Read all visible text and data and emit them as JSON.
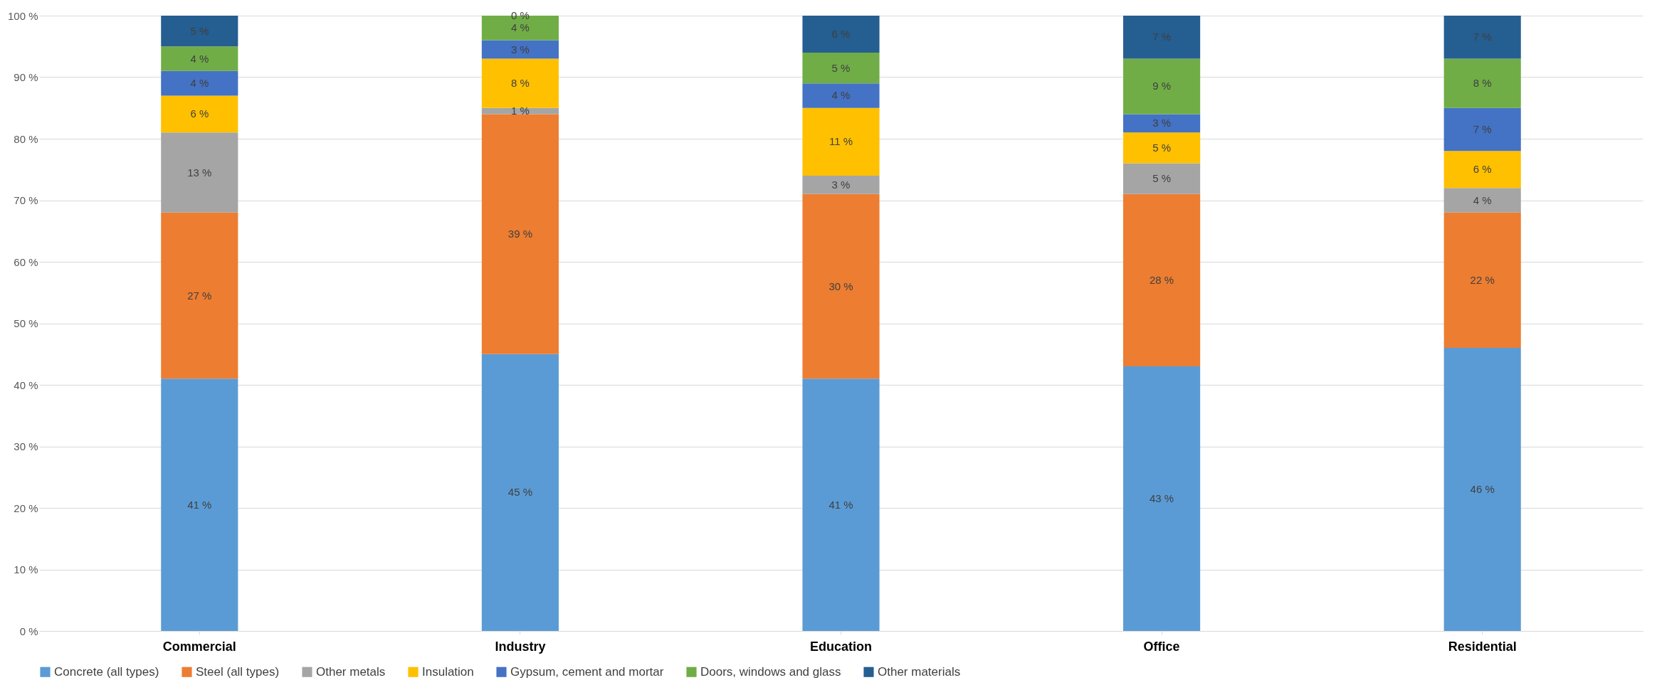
{
  "chart_data": {
    "type": "bar",
    "stacked": true,
    "categories": [
      "Commercial",
      "Industry",
      "Education",
      "Office",
      "Residential"
    ],
    "series": [
      {
        "name": "Concrete (all types)",
        "color": "#5b9bd5",
        "values": [
          41,
          45,
          41,
          43,
          46
        ],
        "value_labels": [
          "41 %",
          "45 %",
          "41 %",
          "43 %",
          "46 %"
        ]
      },
      {
        "name": "Steel (all types)",
        "color": "#ed7d31",
        "values": [
          27,
          39,
          30,
          28,
          22
        ],
        "value_labels": [
          "27 %",
          "39 %",
          "30 %",
          "28 %",
          "22 %"
        ]
      },
      {
        "name": "Other metals",
        "color": "#a5a5a5",
        "values": [
          13,
          1,
          3,
          5,
          4
        ],
        "value_labels": [
          "13 %",
          "1 %",
          "3 %",
          "5 %",
          "4 %"
        ]
      },
      {
        "name": "Insulation",
        "color": "#ffc000",
        "values": [
          6,
          8,
          11,
          5,
          6
        ],
        "value_labels": [
          "6 %",
          "8 %",
          "11 %",
          "5 %",
          "6 %"
        ]
      },
      {
        "name": "Gypsum, cement and mortar",
        "color": "#4472c4",
        "values": [
          4,
          3,
          4,
          3,
          7
        ],
        "value_labels": [
          "4 %",
          "3 %",
          "4 %",
          "3 %",
          "7 %"
        ]
      },
      {
        "name": "Doors, windows and glass",
        "color": "#70ad47",
        "values": [
          4,
          4,
          5,
          9,
          8
        ],
        "value_labels": [
          "4 %",
          "4 %",
          "5 %",
          "9 %",
          "8 %"
        ]
      },
      {
        "name": "Other materials",
        "color": "#255e91",
        "values": [
          5,
          0,
          6,
          7,
          7
        ],
        "value_labels": [
          "5 %",
          "0 %",
          "6 %",
          "7 %",
          "7 %"
        ]
      }
    ],
    "ylim": [
      0,
      100
    ],
    "yticks": [
      {
        "value": 0,
        "label": "0 %"
      },
      {
        "value": 10,
        "label": "10 %"
      },
      {
        "value": 20,
        "label": "20 %"
      },
      {
        "value": 30,
        "label": "30 %"
      },
      {
        "value": 40,
        "label": "40 %"
      },
      {
        "value": 50,
        "label": "50 %"
      },
      {
        "value": 60,
        "label": "60 %"
      },
      {
        "value": 70,
        "label": "70 %"
      },
      {
        "value": 80,
        "label": "80 %"
      },
      {
        "value": 90,
        "label": "90 %"
      },
      {
        "value": 100,
        "label": "100 %"
      }
    ],
    "grid": "y",
    "legend": "bottom"
  }
}
